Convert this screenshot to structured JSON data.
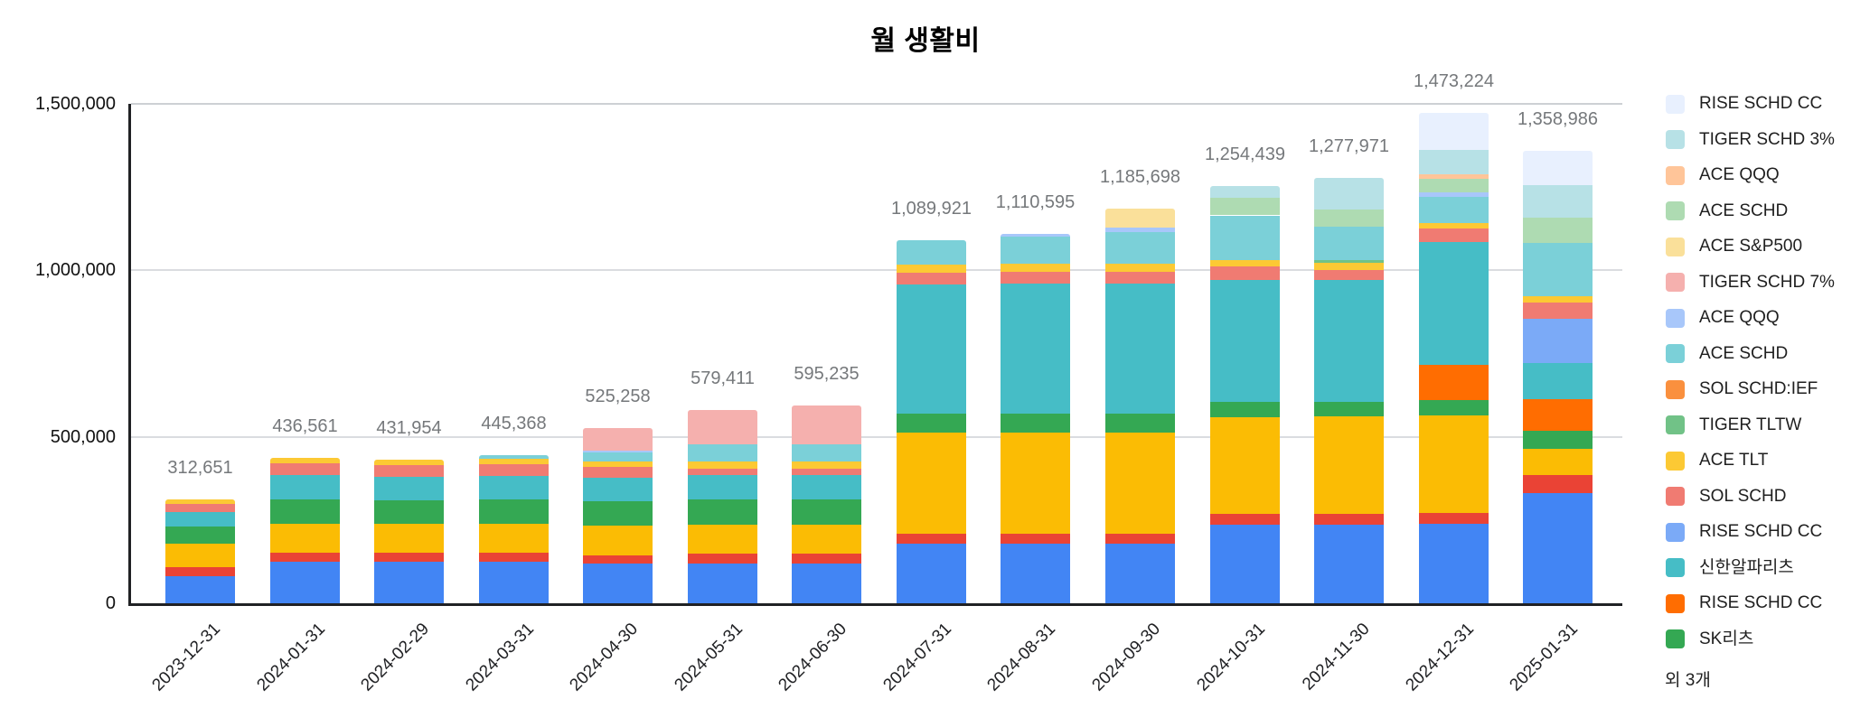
{
  "chart_data": {
    "type": "bar",
    "stacked": true,
    "title": "월 생활비",
    "xlabel": "",
    "ylabel": "",
    "ylim": [
      0,
      1500000
    ],
    "grid": true,
    "legend_position": "right",
    "y_ticks": [
      {
        "value": 0,
        "label": "0"
      },
      {
        "value": 500000,
        "label": "500,000"
      },
      {
        "value": 1000000,
        "label": "1,000,000"
      },
      {
        "value": 1500000,
        "label": "1,500,000"
      }
    ],
    "categories": [
      "2023-12-31",
      "2024-01-31",
      "2024-02-29",
      "2024-03-31",
      "2024-04-30",
      "2024-05-31",
      "2024-06-30",
      "2024-07-31",
      "2024-08-31",
      "2024-09-30",
      "2024-10-31",
      "2024-11-30",
      "2024-12-31",
      "2025-01-31"
    ],
    "totals_formatted": [
      "312,651",
      "436,561",
      "431,954",
      "445,368",
      "525,258",
      "579,411",
      "595,235",
      "1,089,921",
      "1,110,595",
      "1,185,698",
      "1,254,439",
      "1,277,971",
      "1,473,224",
      "1,358,986"
    ],
    "series": [
      {
        "name": "",
        "in_legend": false,
        "color": "#4285F4",
        "values": [
          82000,
          125000,
          125000,
          125000,
          118000,
          118000,
          118000,
          178000,
          178000,
          180000,
          236000,
          236000,
          238000,
          332000
        ]
      },
      {
        "name": "",
        "in_legend": false,
        "color": "#EA4335",
        "values": [
          27000,
          27000,
          27000,
          27000,
          27000,
          30000,
          30000,
          30000,
          30000,
          30000,
          32000,
          33000,
          33000,
          53000
        ]
      },
      {
        "name": "",
        "in_legend": false,
        "color": "#FBBC04",
        "values": [
          71000,
          88000,
          86000,
          88000,
          89000,
          87000,
          87000,
          305000,
          305000,
          303000,
          292000,
          292000,
          294000,
          80000
        ]
      },
      {
        "name": "SK리츠",
        "in_legend": true,
        "color": "#34A853",
        "values": [
          50000,
          73000,
          72000,
          72000,
          73000,
          76000,
          76000,
          57000,
          57000,
          57000,
          45000,
          45000,
          46000,
          53000
        ]
      },
      {
        "name": "RISE SCHD CC",
        "in_legend": true,
        "color": "#FF6D01",
        "values": [
          0,
          0,
          0,
          0,
          0,
          0,
          0,
          0,
          0,
          0,
          0,
          0,
          105000,
          96000
        ]
      },
      {
        "name": "신한알파리츠",
        "in_legend": true,
        "color": "#46BDC6",
        "values": [
          43000,
          71000,
          70000,
          70000,
          71000,
          73000,
          73000,
          388000,
          390000,
          390000,
          365000,
          365000,
          370000,
          107000
        ]
      },
      {
        "name": "RISE SCHD CC",
        "in_legend": true,
        "color": "#7BAAF7",
        "values": [
          0,
          0,
          0,
          0,
          0,
          0,
          0,
          0,
          0,
          0,
          0,
          0,
          0,
          133000
        ]
      },
      {
        "name": "SOL SCHD",
        "in_legend": true,
        "color": "#F07B72",
        "values": [
          25000,
          36000,
          35000,
          35000,
          31000,
          19000,
          19000,
          36000,
          36000,
          36000,
          42000,
          30000,
          41000,
          48000
        ]
      },
      {
        "name": "ACE TLT",
        "in_legend": true,
        "color": "#FCC934",
        "values": [
          14651,
          16561,
          16954,
          16000,
          16000,
          22000,
          22000,
          24000,
          24000,
          24000,
          19000,
          21000,
          14000,
          19000
        ]
      },
      {
        "name": "TIGER TLTW",
        "in_legend": true,
        "color": "#71C287",
        "values": [
          0,
          0,
          0,
          0,
          0,
          0,
          0,
          0,
          0,
          0,
          0,
          8000,
          0,
          0
        ]
      },
      {
        "name": "SOL SCHD:IEF",
        "in_legend": true,
        "color": "#FA903E",
        "values": [
          0,
          0,
          0,
          0,
          0,
          0,
          0,
          0,
          0,
          0,
          0,
          0,
          0,
          0
        ]
      },
      {
        "name": "ACE SCHD",
        "in_legend": true,
        "color": "#7BD0D8",
        "values": [
          0,
          0,
          0,
          12368,
          27000,
          52000,
          53000,
          71921,
          80000,
          95000,
          134000,
          102000,
          79000,
          162000
        ]
      },
      {
        "name": "ACE QQQ",
        "in_legend": true,
        "color": "#A8C7FA",
        "values": [
          0,
          0,
          0,
          0,
          6000,
          0,
          0,
          0,
          10595,
          13000,
          0,
          0,
          14000,
          0
        ]
      },
      {
        "name": "TIGER SCHD 7%",
        "in_legend": true,
        "color": "#F5B0AE",
        "values": [
          0,
          0,
          0,
          0,
          67258,
          102411,
          117235,
          0,
          0,
          0,
          0,
          0,
          0,
          0
        ]
      },
      {
        "name": "ACE S&P500",
        "in_legend": true,
        "color": "#FAE09A",
        "values": [
          0,
          0,
          0,
          0,
          0,
          0,
          0,
          0,
          0,
          57698,
          0,
          0,
          0,
          0
        ]
      },
      {
        "name": "ACE SCHD",
        "in_legend": true,
        "color": "#AEDBB2",
        "values": [
          0,
          0,
          0,
          0,
          0,
          0,
          0,
          0,
          0,
          0,
          53000,
          51000,
          41000,
          74000
        ]
      },
      {
        "name": "ACE QQQ",
        "in_legend": true,
        "color": "#FFC599",
        "values": [
          0,
          0,
          0,
          0,
          0,
          0,
          0,
          0,
          0,
          0,
          0,
          0,
          14000,
          0
        ]
      },
      {
        "name": "TIGER SCHD 3%",
        "in_legend": true,
        "color": "#B7E1E6",
        "values": [
          0,
          0,
          0,
          0,
          0,
          0,
          0,
          0,
          0,
          0,
          36439,
          94971,
          73000,
          98000
        ]
      },
      {
        "name": "RISE SCHD CC",
        "in_legend": true,
        "color": "#E8F0FE",
        "values": [
          0,
          0,
          0,
          0,
          0,
          0,
          0,
          0,
          0,
          0,
          0,
          0,
          111224,
          103986
        ]
      }
    ]
  },
  "legend": {
    "items": [
      {
        "label": "RISE SCHD CC",
        "color": "#E8F0FE"
      },
      {
        "label": "TIGER SCHD 3%",
        "color": "#B7E1E6"
      },
      {
        "label": "ACE QQQ",
        "color": "#FFC599"
      },
      {
        "label": "ACE SCHD",
        "color": "#AEDBB2"
      },
      {
        "label": "ACE S&P500",
        "color": "#FAE09A"
      },
      {
        "label": "TIGER SCHD 7%",
        "color": "#F5B0AE"
      },
      {
        "label": "ACE QQQ",
        "color": "#A8C7FA"
      },
      {
        "label": "ACE SCHD",
        "color": "#7BD0D8"
      },
      {
        "label": "SOL SCHD:IEF",
        "color": "#FA903E"
      },
      {
        "label": "TIGER TLTW",
        "color": "#71C287"
      },
      {
        "label": "ACE TLT",
        "color": "#FCC934"
      },
      {
        "label": "SOL SCHD",
        "color": "#F07B72"
      },
      {
        "label": "RISE SCHD CC",
        "color": "#7BAAF7"
      },
      {
        "label": "신한알파리츠",
        "color": "#46BDC6"
      },
      {
        "label": "RISE SCHD CC",
        "color": "#FF6D01"
      },
      {
        "label": "SK리츠",
        "color": "#34A853"
      }
    ],
    "more_label": "외 3개"
  }
}
